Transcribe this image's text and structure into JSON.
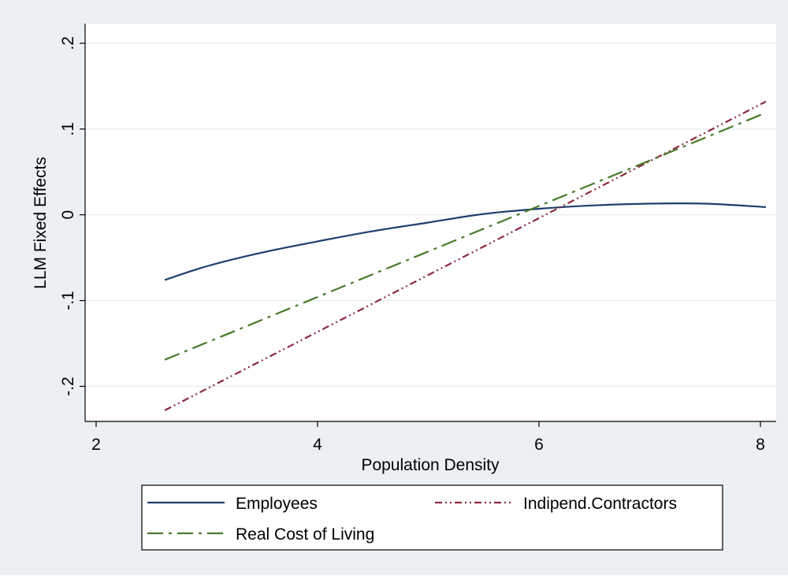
{
  "chart_data": {
    "type": "line",
    "title": "",
    "xlabel": "Population Density",
    "ylabel": "LLM Fixed Effects",
    "xlim": [
      2,
      8
    ],
    "ylim": [
      -0.24,
      0.21
    ],
    "x_ticks": [
      {
        "value": 2,
        "label": "2"
      },
      {
        "value": 4,
        "label": "4"
      },
      {
        "value": 6,
        "label": "6"
      },
      {
        "value": 8,
        "label": "8"
      }
    ],
    "y_ticks": [
      {
        "value": -0.2,
        "label": "-.2"
      },
      {
        "value": -0.1,
        "label": "-.1"
      },
      {
        "value": 0,
        "label": "0"
      },
      {
        "value": 0.1,
        "label": ".1"
      },
      {
        "value": 0.2,
        "label": ".2"
      }
    ],
    "grid": "horizontal",
    "legend": "bottom",
    "series": [
      {
        "name": "Employees",
        "color": "#1f3f6e",
        "dash": "solid",
        "x": [
          2.62,
          3.0,
          3.5,
          4.0,
          4.5,
          5.0,
          5.5,
          6.0,
          6.5,
          7.0,
          7.5,
          8.05
        ],
        "y": [
          -0.076,
          -0.06,
          -0.044,
          -0.031,
          -0.019,
          -0.009,
          0.001,
          0.007,
          0.011,
          0.013,
          0.013,
          0.009
        ]
      },
      {
        "name": "Indipend.Contractors",
        "color": "#8b2c3f",
        "dash": "dash-dot-dot",
        "x": [
          2.62,
          8.05
        ],
        "y": [
          -0.228,
          0.132
        ]
      },
      {
        "name": "Real Cost of Living",
        "color": "#4a7a2a",
        "dash": "long-dash-dot",
        "x": [
          2.62,
          8.05
        ],
        "y": [
          -0.169,
          0.119
        ]
      }
    ]
  }
}
